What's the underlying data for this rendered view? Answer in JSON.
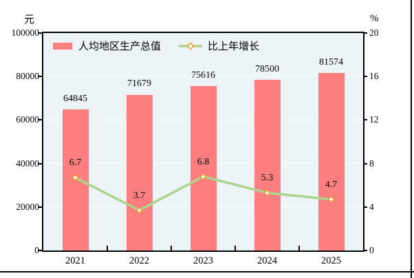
{
  "chart_data": {
    "type": "combo_bar_line",
    "categories": [
      "2021",
      "2022",
      "2023",
      "2024",
      "2025"
    ],
    "series": [
      {
        "name": "人均地区生产总值",
        "chart_type": "bar",
        "axis": "left",
        "color": "#FC7E7E",
        "values": [
          64845,
          71679,
          75616,
          78500,
          81574
        ]
      },
      {
        "name": "比上年增长",
        "chart_type": "line",
        "axis": "right",
        "color": "#ABD48E",
        "marker_shape": "diamond",
        "marker_fill": "#FFFFFF",
        "marker_stroke": "#F0A22E",
        "values": [
          6.7,
          3.7,
          6.8,
          5.3,
          4.7
        ]
      }
    ],
    "left_axis": {
      "unit": "元",
      "min": 0,
      "max": 100000,
      "ticks": [
        0,
        20000,
        40000,
        60000,
        80000,
        100000
      ]
    },
    "right_axis": {
      "unit": "%",
      "min": 0,
      "max": 20,
      "ticks": [
        0,
        4,
        8,
        12,
        16,
        20
      ]
    },
    "grid": true,
    "legend_position": "top-left-inside",
    "plot_background": "#EDF4F8"
  }
}
